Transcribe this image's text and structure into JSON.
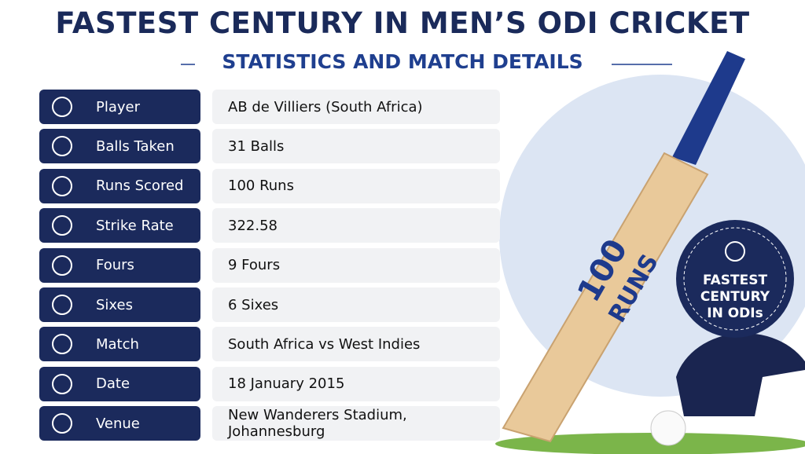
{
  "header": {
    "title": "FASTEST CENTURY IN MEN’S ODI CRICKET",
    "subtitle": "STATISTICS AND MATCH DETAILS"
  },
  "table": {
    "rows": [
      [
        "Player",
        "AB de Villiers (South Africa)"
      ],
      [
        "Balls Taken",
        "31 Balls"
      ],
      [
        "Runs Scored",
        "100 Runs"
      ],
      [
        "Strike Rate",
        "322.58"
      ],
      [
        "Fours",
        "9 Fours"
      ],
      [
        "Sixes",
        "6 Sixes"
      ],
      [
        "Match",
        "South Africa vs West Indies"
      ],
      [
        "Date",
        "18 January 2015"
      ],
      [
        "Venue",
        "New Wanderers Stadium, Johannesburg"
      ]
    ]
  },
  "bat": {
    "lines": [
      "100",
      "RUNS"
    ]
  },
  "badge": {
    "lines": [
      "FASTEST",
      "CENTURY",
      "IN ODIs"
    ]
  }
}
